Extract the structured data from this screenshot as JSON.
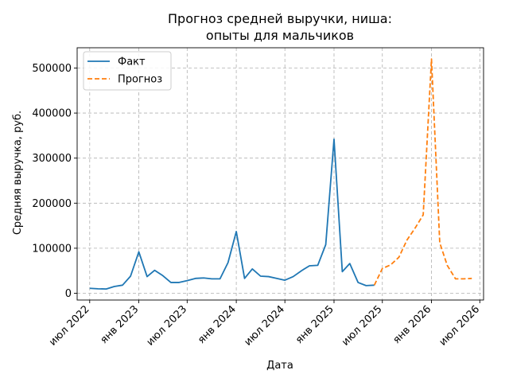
{
  "chart_data": {
    "type": "line",
    "title_lines": [
      "Прогноз средней выручки, ниша:",
      "опыты для мальчиков"
    ],
    "xlabel": "Дата",
    "ylabel": "Средняя выручка, руб.",
    "xlim": [
      "2022-05-15",
      "2026-07-15"
    ],
    "ylim": [
      -15000,
      545000
    ],
    "x_ticks": [
      {
        "date": "2022-07-01",
        "label": "июл 2022"
      },
      {
        "date": "2023-01-01",
        "label": "янв 2023"
      },
      {
        "date": "2023-07-01",
        "label": "июл 2023"
      },
      {
        "date": "2024-01-01",
        "label": "янв 2024"
      },
      {
        "date": "2024-07-01",
        "label": "июл 2024"
      },
      {
        "date": "2025-01-01",
        "label": "янв 2025"
      },
      {
        "date": "2025-07-01",
        "label": "июл 2025"
      },
      {
        "date": "2026-01-01",
        "label": "янв 2026"
      },
      {
        "date": "2026-07-01",
        "label": "июл 2026"
      }
    ],
    "y_ticks": [
      0,
      100000,
      200000,
      300000,
      400000,
      500000
    ],
    "y_tick_labels": [
      "0",
      "100000",
      "200000",
      "300000",
      "400000",
      "500000"
    ],
    "grid": true,
    "legend_position": "top-left",
    "series": [
      {
        "name": "Факт",
        "color": "#1f77b4",
        "style": "solid",
        "points": [
          [
            "2022-07-01",
            11000
          ],
          [
            "2022-08-01",
            10000
          ],
          [
            "2022-09-01",
            9500
          ],
          [
            "2022-10-01",
            15000
          ],
          [
            "2022-11-01",
            18000
          ],
          [
            "2022-12-01",
            38000
          ],
          [
            "2023-01-01",
            92000
          ],
          [
            "2023-02-01",
            37000
          ],
          [
            "2023-03-01",
            51000
          ],
          [
            "2023-04-01",
            39000
          ],
          [
            "2023-05-01",
            24000
          ],
          [
            "2023-06-01",
            24000
          ],
          [
            "2023-07-01",
            28000
          ],
          [
            "2023-08-01",
            33000
          ],
          [
            "2023-09-01",
            34000
          ],
          [
            "2023-10-01",
            32000
          ],
          [
            "2023-11-01",
            32000
          ],
          [
            "2023-12-01",
            68000
          ],
          [
            "2024-01-01",
            137000
          ],
          [
            "2024-02-01",
            33000
          ],
          [
            "2024-03-01",
            54000
          ],
          [
            "2024-04-01",
            38000
          ],
          [
            "2024-05-01",
            37000
          ],
          [
            "2024-06-01",
            33000
          ],
          [
            "2024-07-01",
            29000
          ],
          [
            "2024-08-01",
            37000
          ],
          [
            "2024-09-01",
            50000
          ],
          [
            "2024-10-01",
            61000
          ],
          [
            "2024-11-01",
            62000
          ],
          [
            "2024-12-01",
            108000
          ],
          [
            "2025-01-01",
            342000
          ],
          [
            "2025-02-01",
            48000
          ],
          [
            "2025-03-01",
            66000
          ],
          [
            "2025-04-01",
            24000
          ],
          [
            "2025-05-01",
            17000
          ],
          [
            "2025-06-01",
            18000
          ]
        ]
      },
      {
        "name": "Прогноз",
        "color": "#ff7f0e",
        "style": "dashed",
        "points": [
          [
            "2025-06-01",
            18000
          ],
          [
            "2025-07-01",
            55000
          ],
          [
            "2025-08-01",
            63000
          ],
          [
            "2025-09-01",
            80000
          ],
          [
            "2025-10-01",
            118000
          ],
          [
            "2025-11-01",
            145000
          ],
          [
            "2025-12-01",
            174000
          ],
          [
            "2026-01-01",
            520000
          ],
          [
            "2026-02-01",
            112000
          ],
          [
            "2026-03-01",
            62000
          ],
          [
            "2026-04-01",
            32000
          ],
          [
            "2026-05-01",
            32000
          ],
          [
            "2026-06-01",
            33000
          ]
        ]
      }
    ]
  }
}
